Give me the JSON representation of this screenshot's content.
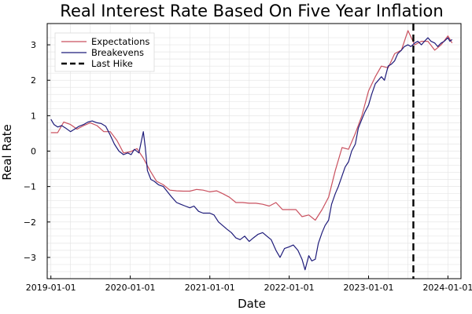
{
  "chart_data": {
    "type": "line",
    "title": "Real Interest Rate Based On Five Year Inflation",
    "xlabel": "Date",
    "ylabel": "Real Rate",
    "x_ticks": [
      "2019-01-01",
      "2020-01-01",
      "2021-01-01",
      "2022-01-01",
      "2023-01-01",
      "2024-01-01"
    ],
    "y_ticks": [
      -3,
      -2,
      -1,
      0,
      1,
      2,
      3
    ],
    "ylim": [
      -3.6,
      3.6
    ],
    "xlim": [
      "2018-12-15",
      "2024-03-01"
    ],
    "grid": true,
    "legend_position": "top-left",
    "series": [
      {
        "name": "Expectations",
        "color": "#c9515f",
        "points": [
          [
            "2019-01-01",
            0.52
          ],
          [
            "2019-02-01",
            0.52
          ],
          [
            "2019-03-01",
            0.82
          ],
          [
            "2019-04-01",
            0.75
          ],
          [
            "2019-05-01",
            0.62
          ],
          [
            "2019-06-01",
            0.72
          ],
          [
            "2019-07-01",
            0.8
          ],
          [
            "2019-08-01",
            0.72
          ],
          [
            "2019-09-01",
            0.55
          ],
          [
            "2019-10-01",
            0.55
          ],
          [
            "2019-11-01",
            0.3
          ],
          [
            "2019-12-01",
            -0.05
          ],
          [
            "2020-01-01",
            -0.02
          ],
          [
            "2020-02-01",
            0.07
          ],
          [
            "2020-03-01",
            -0.2
          ],
          [
            "2020-04-01",
            -0.55
          ],
          [
            "2020-05-01",
            -0.85
          ],
          [
            "2020-06-01",
            -0.95
          ],
          [
            "2020-07-01",
            -1.1
          ],
          [
            "2020-08-01",
            -1.12
          ],
          [
            "2020-09-01",
            -1.13
          ],
          [
            "2020-10-01",
            -1.13
          ],
          [
            "2020-11-01",
            -1.08
          ],
          [
            "2020-12-01",
            -1.1
          ],
          [
            "2021-01-01",
            -1.15
          ],
          [
            "2021-02-01",
            -1.12
          ],
          [
            "2021-03-01",
            -1.2
          ],
          [
            "2021-04-01",
            -1.3
          ],
          [
            "2021-05-01",
            -1.45
          ],
          [
            "2021-06-01",
            -1.45
          ],
          [
            "2021-07-01",
            -1.47
          ],
          [
            "2021-08-01",
            -1.47
          ],
          [
            "2021-09-01",
            -1.5
          ],
          [
            "2021-10-01",
            -1.55
          ],
          [
            "2021-11-01",
            -1.45
          ],
          [
            "2021-12-01",
            -1.65
          ],
          [
            "2022-01-01",
            -1.65
          ],
          [
            "2022-02-01",
            -1.65
          ],
          [
            "2022-03-01",
            -1.85
          ],
          [
            "2022-04-01",
            -1.8
          ],
          [
            "2022-05-01",
            -1.95
          ],
          [
            "2022-06-01",
            -1.65
          ],
          [
            "2022-07-01",
            -1.3
          ],
          [
            "2022-08-01",
            -0.55
          ],
          [
            "2022-09-01",
            0.1
          ],
          [
            "2022-10-01",
            0.05
          ],
          [
            "2022-11-01",
            0.5
          ],
          [
            "2022-12-01",
            1.0
          ],
          [
            "2023-01-01",
            1.7
          ],
          [
            "2023-02-01",
            2.1
          ],
          [
            "2023-03-01",
            2.4
          ],
          [
            "2023-04-01",
            2.35
          ],
          [
            "2023-05-01",
            2.75
          ],
          [
            "2023-06-01",
            2.85
          ],
          [
            "2023-07-01",
            3.4
          ],
          [
            "2023-08-01",
            3.0
          ],
          [
            "2023-09-01",
            3.1
          ],
          [
            "2023-10-01",
            3.1
          ],
          [
            "2023-11-01",
            2.85
          ],
          [
            "2023-12-01",
            3.0
          ],
          [
            "2024-01-01",
            3.25
          ],
          [
            "2024-01-20",
            3.05
          ]
        ]
      },
      {
        "name": "Breakevens",
        "color": "#1f1c7a",
        "points": [
          [
            "2019-01-01",
            0.9
          ],
          [
            "2019-01-15",
            0.75
          ],
          [
            "2019-02-01",
            0.68
          ],
          [
            "2019-02-20",
            0.72
          ],
          [
            "2019-03-10",
            0.65
          ],
          [
            "2019-04-01",
            0.55
          ],
          [
            "2019-04-20",
            0.62
          ],
          [
            "2019-05-10",
            0.7
          ],
          [
            "2019-06-01",
            0.75
          ],
          [
            "2019-06-20",
            0.82
          ],
          [
            "2019-07-10",
            0.85
          ],
          [
            "2019-08-01",
            0.8
          ],
          [
            "2019-08-20",
            0.78
          ],
          [
            "2019-09-10",
            0.7
          ],
          [
            "2019-10-01",
            0.45
          ],
          [
            "2019-10-20",
            0.2
          ],
          [
            "2019-11-10",
            0.0
          ],
          [
            "2019-12-01",
            -0.1
          ],
          [
            "2019-12-20",
            -0.05
          ],
          [
            "2020-01-05",
            -0.1
          ],
          [
            "2020-01-20",
            0.05
          ],
          [
            "2020-02-10",
            -0.05
          ],
          [
            "2020-03-01",
            0.55
          ],
          [
            "2020-03-10",
            0.1
          ],
          [
            "2020-03-20",
            -0.55
          ],
          [
            "2020-04-05",
            -0.8
          ],
          [
            "2020-04-20",
            -0.85
          ],
          [
            "2020-05-10",
            -0.95
          ],
          [
            "2020-06-01",
            -1.0
          ],
          [
            "2020-06-20",
            -1.15
          ],
          [
            "2020-07-10",
            -1.3
          ],
          [
            "2020-08-01",
            -1.45
          ],
          [
            "2020-08-20",
            -1.5
          ],
          [
            "2020-09-10",
            -1.55
          ],
          [
            "2020-10-01",
            -1.6
          ],
          [
            "2020-10-20",
            -1.55
          ],
          [
            "2020-11-10",
            -1.7
          ],
          [
            "2020-12-01",
            -1.75
          ],
          [
            "2021-01-01",
            -1.75
          ],
          [
            "2021-01-20",
            -1.8
          ],
          [
            "2021-02-10",
            -2.0
          ],
          [
            "2021-03-01",
            -2.1
          ],
          [
            "2021-03-20",
            -2.2
          ],
          [
            "2021-04-10",
            -2.3
          ],
          [
            "2021-05-01",
            -2.45
          ],
          [
            "2021-05-20",
            -2.5
          ],
          [
            "2021-06-10",
            -2.4
          ],
          [
            "2021-07-01",
            -2.55
          ],
          [
            "2021-07-20",
            -2.45
          ],
          [
            "2021-08-10",
            -2.35
          ],
          [
            "2021-09-01",
            -2.3
          ],
          [
            "2021-09-20",
            -2.4
          ],
          [
            "2021-10-10",
            -2.5
          ],
          [
            "2021-11-01",
            -2.8
          ],
          [
            "2021-11-20",
            -3.0
          ],
          [
            "2021-12-10",
            -2.75
          ],
          [
            "2022-01-01",
            -2.7
          ],
          [
            "2022-01-20",
            -2.65
          ],
          [
            "2022-02-10",
            -2.8
          ],
          [
            "2022-03-01",
            -3.05
          ],
          [
            "2022-03-15",
            -3.35
          ],
          [
            "2022-04-01",
            -2.95
          ],
          [
            "2022-04-15",
            -3.1
          ],
          [
            "2022-05-01",
            -3.05
          ],
          [
            "2022-05-15",
            -2.6
          ],
          [
            "2022-06-01",
            -2.3
          ],
          [
            "2022-06-15",
            -2.1
          ],
          [
            "2022-07-01",
            -1.95
          ],
          [
            "2022-07-15",
            -1.5
          ],
          [
            "2022-08-01",
            -1.2
          ],
          [
            "2022-08-15",
            -1.0
          ],
          [
            "2022-09-01",
            -0.7
          ],
          [
            "2022-09-15",
            -0.45
          ],
          [
            "2022-10-01",
            -0.3
          ],
          [
            "2022-10-15",
            0.0
          ],
          [
            "2022-11-01",
            0.2
          ],
          [
            "2022-11-15",
            0.65
          ],
          [
            "2022-12-01",
            0.9
          ],
          [
            "2022-12-15",
            1.1
          ],
          [
            "2023-01-01",
            1.3
          ],
          [
            "2023-01-15",
            1.6
          ],
          [
            "2023-02-01",
            1.9
          ],
          [
            "2023-02-15",
            2.0
          ],
          [
            "2023-03-01",
            2.1
          ],
          [
            "2023-03-15",
            2.0
          ],
          [
            "2023-04-01",
            2.4
          ],
          [
            "2023-04-15",
            2.45
          ],
          [
            "2023-05-01",
            2.55
          ],
          [
            "2023-05-15",
            2.75
          ],
          [
            "2023-06-01",
            2.85
          ],
          [
            "2023-06-15",
            2.95
          ],
          [
            "2023-07-01",
            3.0
          ],
          [
            "2023-07-15",
            2.95
          ],
          [
            "2023-08-01",
            3.05
          ],
          [
            "2023-08-15",
            3.1
          ],
          [
            "2023-09-01",
            3.0
          ],
          [
            "2023-09-15",
            3.1
          ],
          [
            "2023-10-01",
            3.2
          ],
          [
            "2023-10-15",
            3.1
          ],
          [
            "2023-11-01",
            3.05
          ],
          [
            "2023-11-15",
            2.95
          ],
          [
            "2023-12-01",
            3.05
          ],
          [
            "2023-12-15",
            3.1
          ],
          [
            "2024-01-01",
            3.2
          ],
          [
            "2024-01-10",
            3.1
          ],
          [
            "2024-01-20",
            3.15
          ]
        ]
      }
    ],
    "vline": {
      "name": "Last Hike",
      "x": "2023-07-26",
      "color": "#000000",
      "style": "dashed"
    }
  }
}
